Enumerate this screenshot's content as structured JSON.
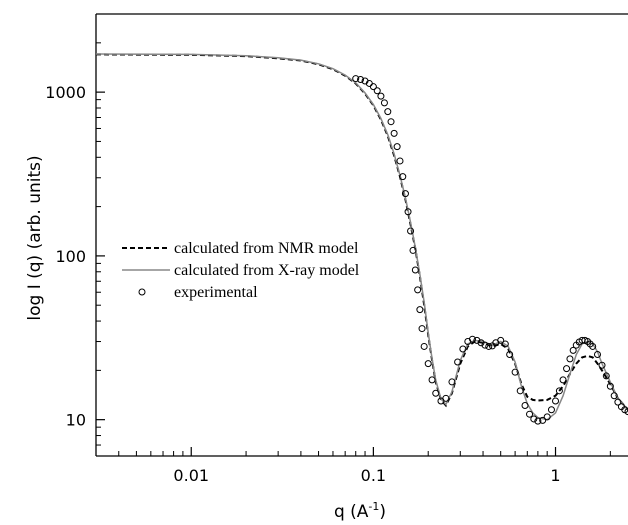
{
  "chart_data": {
    "type": "line",
    "xlabel": "q (A",
    "xlabel_sup": "-1",
    "xlabel_tail": ")",
    "ylabel": "log I (q) (arb. units)",
    "xscale": "log",
    "yscale": "log",
    "xlim": [
      0.003,
      2.5
    ],
    "ylim": [
      6,
      3000
    ],
    "x_ticks": [
      {
        "value": 0.01,
        "label": "0.01"
      },
      {
        "value": 0.1,
        "label": "0.1"
      },
      {
        "value": 1,
        "label": "1"
      }
    ],
    "y_ticks": [
      {
        "value": 10,
        "label": "10"
      },
      {
        "value": 100,
        "label": "100"
      },
      {
        "value": 1000,
        "label": "1000"
      }
    ],
    "legend_position": "center-left",
    "series": [
      {
        "name": "calculated from NMR model",
        "style": "dashed",
        "color": "#000000",
        "points": [
          [
            0.003,
            1700
          ],
          [
            0.01,
            1690
          ],
          [
            0.02,
            1660
          ],
          [
            0.03,
            1610
          ],
          [
            0.04,
            1560
          ],
          [
            0.05,
            1480
          ],
          [
            0.06,
            1380
          ],
          [
            0.07,
            1260
          ],
          [
            0.08,
            1130
          ],
          [
            0.09,
            980
          ],
          [
            0.1,
            830
          ],
          [
            0.11,
            680
          ],
          [
            0.12,
            540
          ],
          [
            0.13,
            410
          ],
          [
            0.14,
            305
          ],
          [
            0.15,
            220
          ],
          [
            0.16,
            155
          ],
          [
            0.17,
            110
          ],
          [
            0.18,
            75
          ],
          [
            0.19,
            50
          ],
          [
            0.2,
            33
          ],
          [
            0.21,
            23
          ],
          [
            0.22,
            17
          ],
          [
            0.235,
            13.2
          ],
          [
            0.25,
            12.2
          ],
          [
            0.27,
            14.5
          ],
          [
            0.3,
            22
          ],
          [
            0.33,
            28
          ],
          [
            0.36,
            30
          ],
          [
            0.4,
            29.5
          ],
          [
            0.45,
            28
          ],
          [
            0.5,
            29
          ],
          [
            0.55,
            27
          ],
          [
            0.6,
            22
          ],
          [
            0.65,
            16.5
          ],
          [
            0.7,
            13.8
          ],
          [
            0.75,
            13.2
          ],
          [
            0.8,
            13.1
          ],
          [
            0.9,
            13.2
          ],
          [
            1.0,
            14
          ],
          [
            1.1,
            16
          ],
          [
            1.2,
            19
          ],
          [
            1.3,
            22
          ],
          [
            1.4,
            24
          ],
          [
            1.5,
            24.5
          ],
          [
            1.6,
            24
          ],
          [
            1.7,
            22
          ],
          [
            1.8,
            20
          ],
          [
            2.0,
            16.5
          ],
          [
            2.2,
            13.5
          ],
          [
            2.5,
            11.5
          ]
        ]
      },
      {
        "name": "calculated from X-ray model",
        "style": "solid",
        "color": "#888888",
        "points": [
          [
            0.003,
            1710
          ],
          [
            0.01,
            1700
          ],
          [
            0.02,
            1670
          ],
          [
            0.03,
            1620
          ],
          [
            0.04,
            1570
          ],
          [
            0.05,
            1490
          ],
          [
            0.06,
            1390
          ],
          [
            0.07,
            1270
          ],
          [
            0.08,
            1140
          ],
          [
            0.09,
            990
          ],
          [
            0.1,
            840
          ],
          [
            0.11,
            690
          ],
          [
            0.12,
            550
          ],
          [
            0.13,
            420
          ],
          [
            0.14,
            310
          ],
          [
            0.15,
            225
          ],
          [
            0.16,
            160
          ],
          [
            0.17,
            112
          ],
          [
            0.18,
            77
          ],
          [
            0.19,
            52
          ],
          [
            0.2,
            34
          ],
          [
            0.21,
            23.5
          ],
          [
            0.22,
            17.5
          ],
          [
            0.235,
            13.4
          ],
          [
            0.25,
            12.4
          ],
          [
            0.27,
            14.8
          ],
          [
            0.3,
            23
          ],
          [
            0.33,
            29
          ],
          [
            0.36,
            30.5
          ],
          [
            0.4,
            30
          ],
          [
            0.45,
            28.5
          ],
          [
            0.5,
            30
          ],
          [
            0.55,
            28
          ],
          [
            0.6,
            22.5
          ],
          [
            0.65,
            16
          ],
          [
            0.7,
            12.5
          ],
          [
            0.75,
            11
          ],
          [
            0.8,
            10.3
          ],
          [
            0.9,
            10
          ],
          [
            1.0,
            11
          ],
          [
            1.1,
            14
          ],
          [
            1.2,
            19
          ],
          [
            1.3,
            25
          ],
          [
            1.4,
            29
          ],
          [
            1.5,
            30
          ],
          [
            1.6,
            29
          ],
          [
            1.7,
            26
          ],
          [
            1.8,
            22
          ],
          [
            2.0,
            17
          ],
          [
            2.2,
            13.5
          ],
          [
            2.5,
            11.5
          ]
        ]
      },
      {
        "name": "experimental",
        "style": "markers",
        "color": "#000000",
        "points": [
          [
            0.08,
            1210
          ],
          [
            0.085,
            1195
          ],
          [
            0.09,
            1170
          ],
          [
            0.095,
            1130
          ],
          [
            0.1,
            1080
          ],
          [
            0.105,
            1020
          ],
          [
            0.11,
            945
          ],
          [
            0.115,
            860
          ],
          [
            0.12,
            760
          ],
          [
            0.125,
            660
          ],
          [
            0.13,
            560
          ],
          [
            0.135,
            465
          ],
          [
            0.14,
            380
          ],
          [
            0.145,
            305
          ],
          [
            0.15,
            240
          ],
          [
            0.155,
            186
          ],
          [
            0.16,
            142
          ],
          [
            0.165,
            108
          ],
          [
            0.17,
            82
          ],
          [
            0.175,
            62
          ],
          [
            0.18,
            47
          ],
          [
            0.185,
            36
          ],
          [
            0.19,
            28
          ],
          [
            0.2,
            22
          ],
          [
            0.21,
            17.5
          ],
          [
            0.22,
            14.5
          ],
          [
            0.235,
            13
          ],
          [
            0.25,
            13.5
          ],
          [
            0.27,
            17
          ],
          [
            0.29,
            22.5
          ],
          [
            0.31,
            27
          ],
          [
            0.33,
            30
          ],
          [
            0.35,
            31
          ],
          [
            0.37,
            30.5
          ],
          [
            0.39,
            29.5
          ],
          [
            0.41,
            28.5
          ],
          [
            0.43,
            28
          ],
          [
            0.45,
            28.2
          ],
          [
            0.47,
            29.5
          ],
          [
            0.5,
            30.5
          ],
          [
            0.53,
            29
          ],
          [
            0.56,
            25
          ],
          [
            0.6,
            19.5
          ],
          [
            0.64,
            15
          ],
          [
            0.68,
            12.2
          ],
          [
            0.72,
            10.8
          ],
          [
            0.76,
            10.1
          ],
          [
            0.8,
            9.8
          ],
          [
            0.85,
            9.9
          ],
          [
            0.9,
            10.4
          ],
          [
            0.95,
            11.5
          ],
          [
            1.0,
            13
          ],
          [
            1.05,
            15
          ],
          [
            1.1,
            17.5
          ],
          [
            1.15,
            20.5
          ],
          [
            1.2,
            23.5
          ],
          [
            1.25,
            26.5
          ],
          [
            1.3,
            28.5
          ],
          [
            1.35,
            29.8
          ],
          [
            1.4,
            30.5
          ],
          [
            1.45,
            30.5
          ],
          [
            1.5,
            30
          ],
          [
            1.55,
            29
          ],
          [
            1.6,
            28
          ],
          [
            1.7,
            25
          ],
          [
            1.8,
            21.5
          ],
          [
            1.9,
            18.5
          ],
          [
            2.0,
            16
          ],
          [
            2.1,
            14
          ],
          [
            2.2,
            12.8
          ],
          [
            2.3,
            12
          ],
          [
            2.4,
            11.5
          ],
          [
            2.5,
            11.2
          ]
        ]
      }
    ]
  }
}
